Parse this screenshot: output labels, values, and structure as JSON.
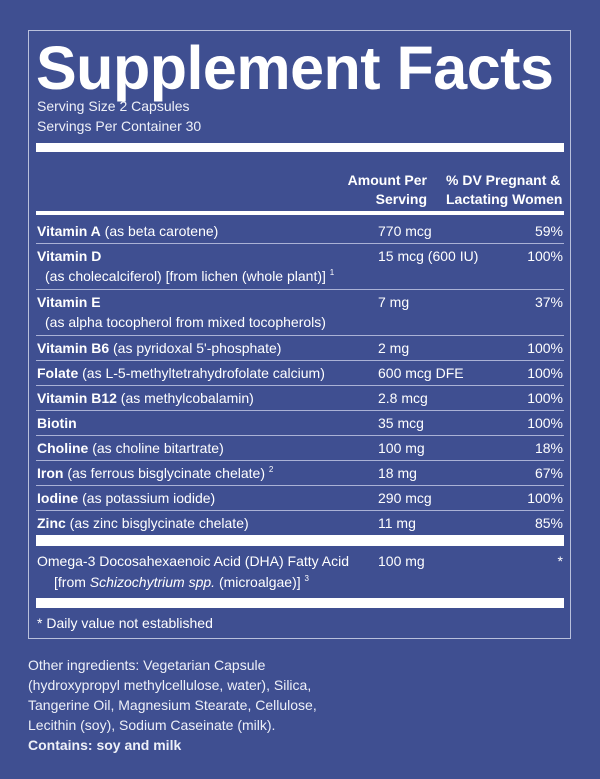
{
  "title": "Supplement Facts",
  "serving_size": "Serving Size 2 Capsules",
  "servings_per_container": "Servings Per Container 30",
  "columns": {
    "amount_line1": "Amount Per",
    "amount_line2": "Serving",
    "dv_line1": "% DV Pregnant &",
    "dv_line2": "Lactating Women"
  },
  "nutrients": [
    {
      "name": "Vitamin A",
      "source": " (as beta carotene)",
      "amount": "770 mcg",
      "dv": "59%"
    },
    {
      "name": "Vitamin D",
      "sub": "(as cholecalciferol) [from lichen (whole plant)]",
      "sup": "1",
      "amount": "15 mcg (600 IU)",
      "dv": "100%"
    },
    {
      "name": "Vitamin E",
      "sub": "(as alpha tocopherol from mixed tocopherols)",
      "amount": "7 mg",
      "dv": "37%"
    },
    {
      "name": "Vitamin B6",
      "source": " (as pyridoxal 5'-phosphate)",
      "amount": "2 mg",
      "dv": "100%"
    },
    {
      "name": "Folate",
      "source": " (as L-5-methyltetrahydrofolate calcium)",
      "amount": "600 mcg DFE",
      "dv": "100%"
    },
    {
      "name": "Vitamin B12",
      "source": " (as methylcobalamin)",
      "amount": "2.8 mcg",
      "dv": "100%"
    },
    {
      "name": "Biotin",
      "amount": "35 mcg",
      "dv": "100%"
    },
    {
      "name": "Choline",
      "source": " (as choline bitartrate)",
      "amount": "100 mg",
      "dv": "18%"
    },
    {
      "name": "Iron",
      "source": " (as ferrous bisglycinate chelate)",
      "sup": "2",
      "amount": "18 mg",
      "dv": "67%"
    },
    {
      "name": "Iodine",
      "source": " (as potassium iodide)",
      "amount": "290 mcg",
      "dv": "100%"
    },
    {
      "name": "Zinc",
      "source": " (as zinc bisglycinate chelate)",
      "amount": "11 mg",
      "dv": "85%"
    }
  ],
  "omega": {
    "name": "Omega-3 Docosahexaenoic Acid (DHA) Fatty Acid",
    "sub_prefix": "[from ",
    "sub_italic": "Schizochytrium spp.",
    "sub_suffix": " (microalgae)]",
    "sup": "3",
    "amount": "100 mg",
    "dv": "*"
  },
  "footnote": "* Daily value not established",
  "other_ingredients": "Other ingredients: Vegetarian Capsule (hydroxypropyl methylcellulose, water), Silica, Tangerine Oil, Magnesium Stearate, Cellulose, Lecithin (soy), Sodium Caseinate (milk).",
  "contains": "Contains: soy and milk",
  "colors": {
    "background": "#3f4f91",
    "text": "#ffffff"
  }
}
